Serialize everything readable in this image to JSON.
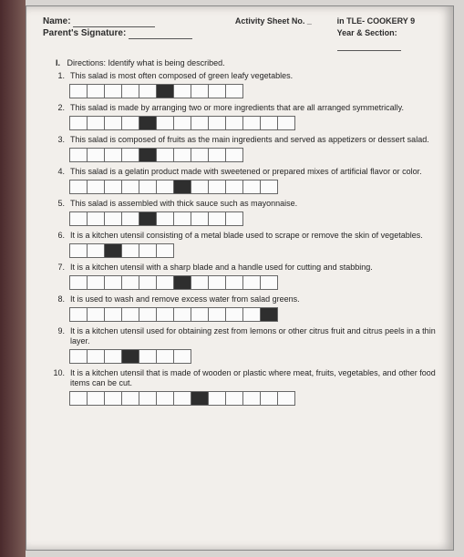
{
  "header": {
    "sheet_label": "Activity Sheet No. _",
    "sheet_subject": "in TLE- COOKERY 9",
    "name_label": "Name:",
    "parent_label": "Parent's Signature:",
    "year_label": "Year & Section:"
  },
  "directions_label": "I.",
  "directions_text": "Directions: Identify what is being described.",
  "items": [
    {
      "n": "1.",
      "text": "This salad is most often composed of green leafy vegetables.",
      "cells": 10,
      "black": [
        5
      ]
    },
    {
      "n": "2.",
      "text": "This salad is made by arranging two or more ingredients that are all arranged symmetrically.",
      "cells": 13,
      "black": [
        4
      ]
    },
    {
      "n": "3.",
      "text": "This salad is composed of fruits as the main ingredients and served as appetizers or dessert salad.",
      "cells": 10,
      "black": [
        4
      ]
    },
    {
      "n": "4.",
      "text": "This salad is a gelatin product made with sweetened or prepared mixes of artificial flavor or color.",
      "cells": 12,
      "black": [
        6
      ]
    },
    {
      "n": "5.",
      "text": "This salad is assembled with thick sauce such as mayonnaise.",
      "cells": 10,
      "black": [
        4
      ]
    },
    {
      "n": "6.",
      "text": "It is a kitchen utensil consisting of a metal blade used to scrape or remove the skin of vegetables.",
      "cells": 6,
      "black": [
        2
      ]
    },
    {
      "n": "7.",
      "text": "It is a kitchen utensil with a sharp blade and a handle used for cutting and stabbing.",
      "cells": 12,
      "black": [
        6
      ]
    },
    {
      "n": "8.",
      "text": "It is used to wash and remove excess water from salad greens.",
      "cells": 12,
      "black": [
        11
      ]
    },
    {
      "n": "9.",
      "text": "It is a kitchen utensil used for obtaining zest from lemons or other citrus fruit and citrus peels in a thin layer.",
      "cells": 7,
      "black": [
        3
      ]
    },
    {
      "n": "10.",
      "text": "It is a kitchen utensil that is made of wooden or plastic where meat, fruits, vegetables, and other food items can be cut.",
      "cells": 13,
      "black": [
        7
      ]
    }
  ],
  "colors": {
    "paper": "#f6f2ee",
    "ink": "#222222",
    "cell_border": "#666666",
    "black_cell": "#2b2b2b"
  }
}
